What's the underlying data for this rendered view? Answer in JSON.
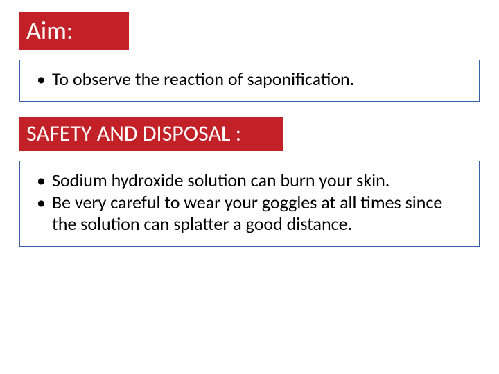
{
  "colors": {
    "heading_bg": "#c32128",
    "heading_text": "#ffffff",
    "box_border": "#3a5ea8",
    "body_text": "#000000",
    "slide_bg": "#ffffff"
  },
  "typography": {
    "heading_aim_fontsize": 36,
    "heading_safety_fontsize": 32,
    "body_fontsize": 26
  },
  "sections": [
    {
      "heading": "Aim:",
      "heading_width": 158,
      "bullets": [
        "To observe the reaction of saponification."
      ]
    },
    {
      "heading": "SAFETY AND DISPOSAL :",
      "heading_width": 380,
      "bullets": [
        "Sodium hydroxide solution can burn your skin.",
        "Be very careful to wear your goggles at all times since the solution can splatter a good distance."
      ]
    }
  ]
}
